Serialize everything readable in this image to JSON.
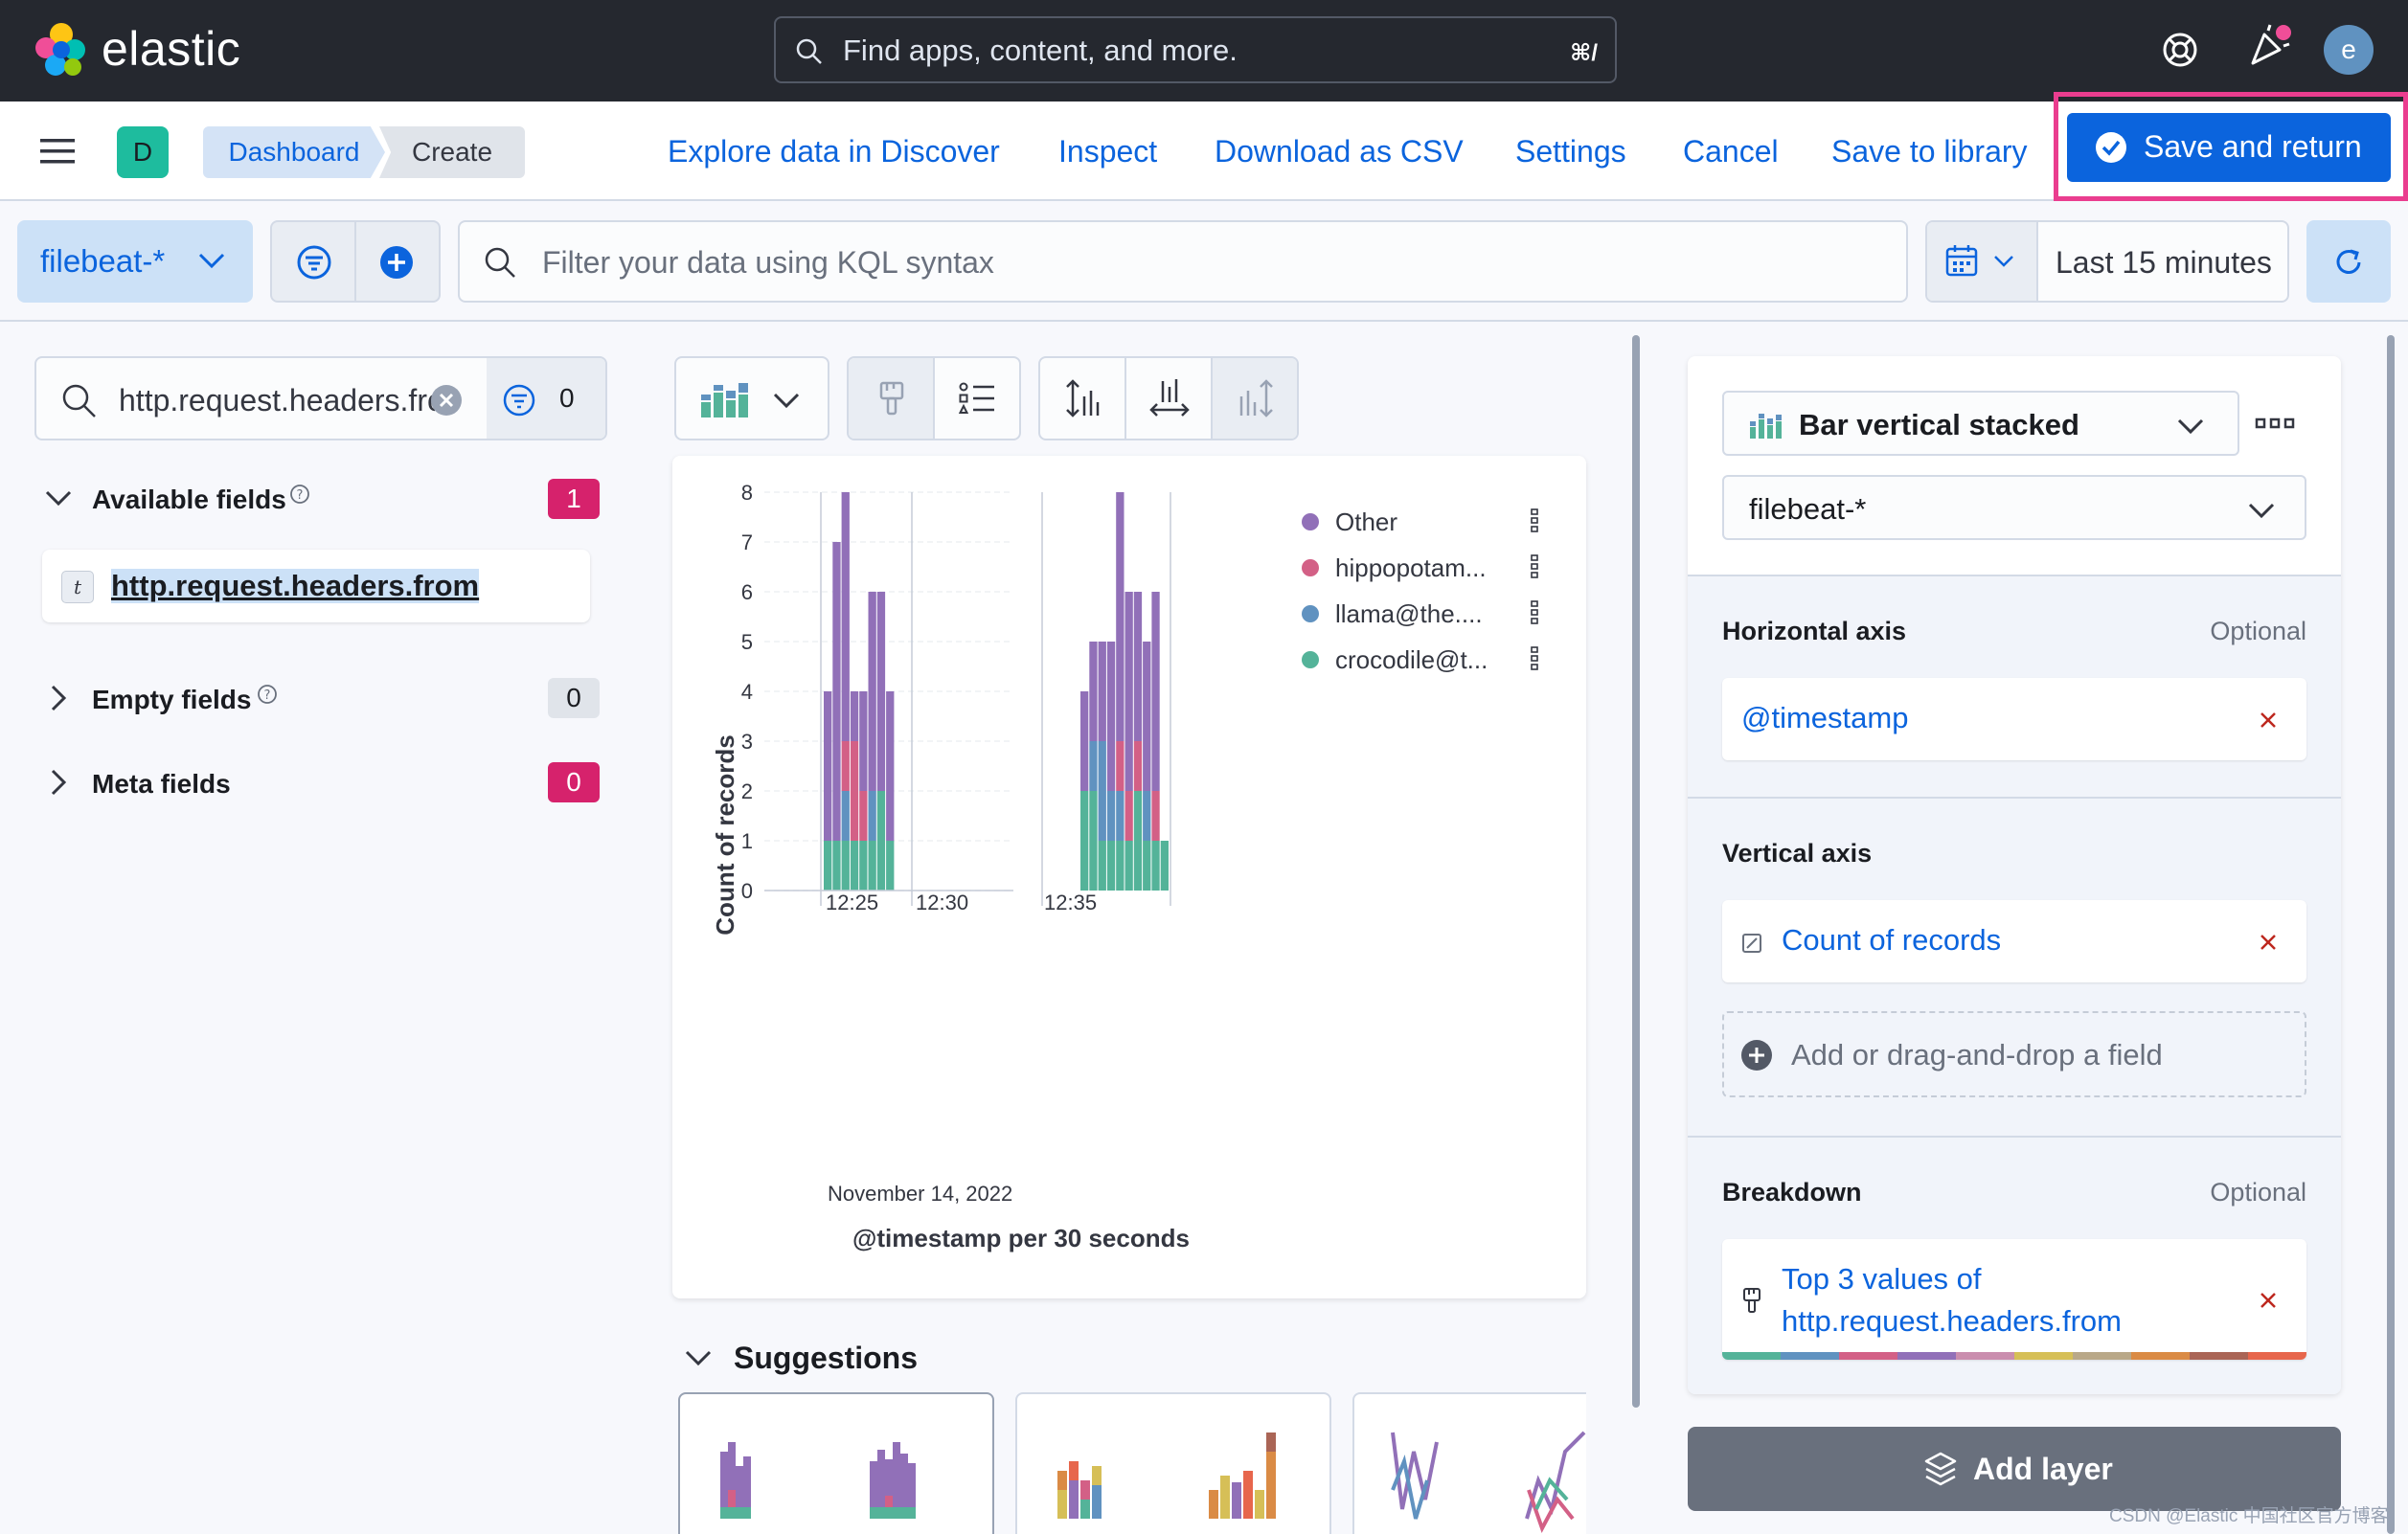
{
  "topbar": {
    "brand": "elastic",
    "search_placeholder": "Find apps, content, and more.",
    "shortcut": "⌘/",
    "avatar": "e"
  },
  "header": {
    "space": "D",
    "breadcrumbs": [
      "Dashboard",
      "Create"
    ],
    "actions": [
      "Explore data in Discover",
      "Inspect",
      "Download as CSV",
      "Settings",
      "Cancel",
      "Save to library"
    ],
    "primary": "Save and return"
  },
  "query": {
    "data_view": "filebeat-*",
    "placeholder": "Filter your data using KQL syntax",
    "time": "Last 15 minutes"
  },
  "fields": {
    "search_value": "http.request.headers.from",
    "filter_count": "0",
    "available_label": "Available fields",
    "available_count": "1",
    "field_type": "t",
    "field": "http.request.headers.from",
    "empty_label": "Empty fields",
    "empty_count": "0",
    "meta_label": "Meta fields",
    "meta_count": "0"
  },
  "chart_data": {
    "type": "bar",
    "title": "",
    "xlabel": "@timestamp per 30 seconds",
    "xsublabel": "November 14, 2022",
    "ylabel": "Count of records",
    "ylim": [
      0,
      8
    ],
    "yticks": [
      0,
      1,
      2,
      3,
      4,
      5,
      6,
      7,
      8
    ],
    "xticks": [
      "12:25",
      "12:30",
      "12:35"
    ],
    "legend_position": "top-right",
    "series": [
      {
        "name": "crocodile@t...",
        "color": "#54b399"
      },
      {
        "name": "llama@the....",
        "color": "#6092c0"
      },
      {
        "name": "hippopotam...",
        "color": "#d36086"
      },
      {
        "name": "Other",
        "color": "#9170b8"
      }
    ],
    "bars_left": [
      [
        1,
        0,
        0,
        3
      ],
      [
        1,
        0,
        0,
        6
      ],
      [
        1,
        1,
        1,
        5
      ],
      [
        1,
        0,
        2,
        1
      ],
      [
        1,
        0,
        1,
        2
      ],
      [
        1,
        1,
        0,
        4
      ],
      [
        2,
        0,
        0,
        4
      ],
      [
        1,
        0,
        0,
        3
      ]
    ],
    "bars_right": [
      [
        2,
        0,
        0,
        2
      ],
      [
        2,
        1,
        0,
        2
      ],
      [
        1,
        2,
        0,
        2
      ],
      [
        1,
        1,
        0,
        3
      ],
      [
        1,
        1,
        1,
        5
      ],
      [
        1,
        0,
        1,
        4
      ],
      [
        2,
        0,
        1,
        3
      ],
      [
        1,
        1,
        0,
        3
      ],
      [
        1,
        0,
        1,
        4
      ],
      [
        1,
        0,
        0,
        0
      ]
    ]
  },
  "toolbar": {
    "chart_icon": "bar-chart-icon"
  },
  "suggestions": {
    "title": "Suggestions"
  },
  "config": {
    "chart_type": "Bar vertical stacked",
    "data_view": "filebeat-*",
    "horizontal_label": "Horizontal axis",
    "optional": "Optional",
    "horizontal_field": "@timestamp",
    "vertical_label": "Vertical axis",
    "vertical_field": "Count of records",
    "add_field": "Add or drag-and-drop a field",
    "breakdown_label": "Breakdown",
    "breakdown_field": "Top 3 values of http.request.headers.from",
    "palette": [
      "#54b399",
      "#6092c0",
      "#d36086",
      "#9170b8",
      "#ca8eae",
      "#d6bf57",
      "#b9a888",
      "#da8b45",
      "#aa6556",
      "#e7664c"
    ],
    "add_layer": "Add layer"
  },
  "footer": "CSDN @Elastic 中国社区官方博客"
}
